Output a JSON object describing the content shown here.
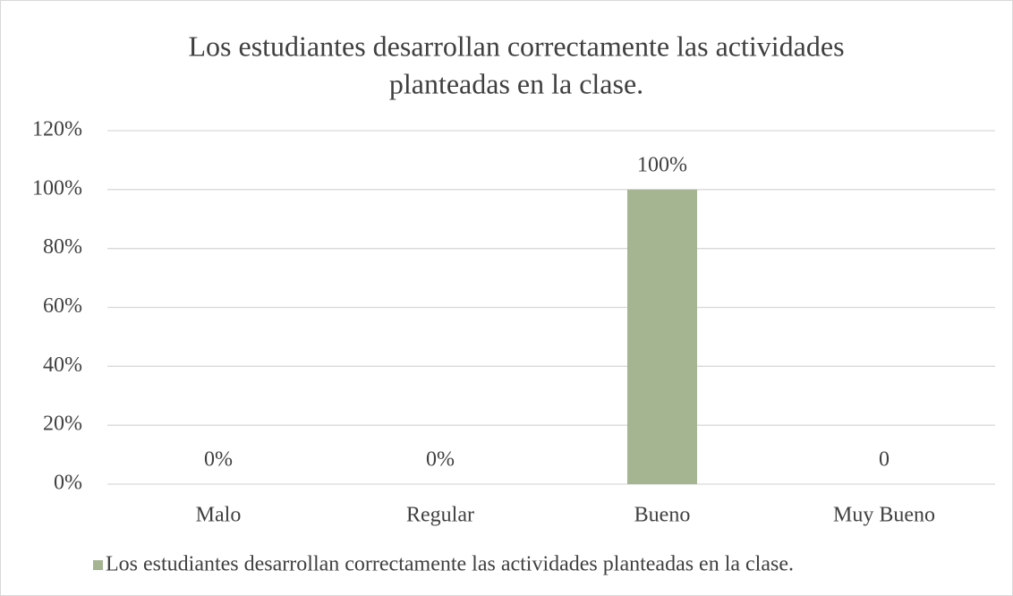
{
  "chart_data": {
    "type": "bar",
    "title": [
      "Los estudiantes desarrollan correctamente las actividades",
      "planteadas en la clase."
    ],
    "categories": [
      "Malo",
      "Regular",
      "Bueno",
      "Muy Bueno"
    ],
    "series": [
      {
        "name": "Los estudiantes desarrollan correctamente las actividades planteadas en la clase.",
        "color": "#a5b592",
        "values": [
          0,
          0,
          100,
          0
        ],
        "value_labels": [
          "0%",
          "0%",
          "100%",
          "0"
        ]
      }
    ],
    "ylim": [
      0,
      120
    ],
    "yticks": [
      {
        "value": 0,
        "label": "0%"
      },
      {
        "value": 20,
        "label": "20%"
      },
      {
        "value": 40,
        "label": "40%"
      },
      {
        "value": 60,
        "label": "60%"
      },
      {
        "value": 80,
        "label": "80%"
      },
      {
        "value": 100,
        "label": "100%"
      },
      {
        "value": 120,
        "label": "120%"
      }
    ],
    "grid": true,
    "legend": "bottom"
  }
}
